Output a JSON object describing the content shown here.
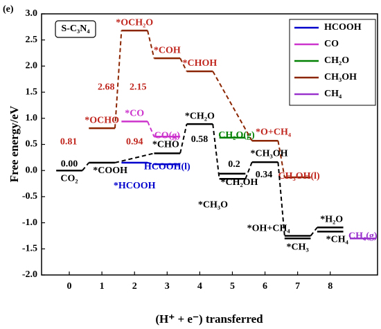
{
  "chart_data": {
    "type": "energy-diagram",
    "panel_label": "(e)",
    "title": "S-C₃N₄",
    "x_label": "(H⁺ + e⁻) transferred",
    "y_label": "Free energy/eV",
    "xlim": [
      -0.85,
      9.45
    ],
    "ylim": [
      -2.0,
      3.0
    ],
    "xticks": [
      0,
      1,
      2,
      3,
      4,
      5,
      6,
      7,
      8
    ],
    "yticks": [
      {
        "value": -2,
        "label": "-2.0"
      },
      -1.5,
      {
        "value": -1,
        "label": "-1.0"
      },
      -0.5,
      {
        "value": 0,
        "label": "0.0"
      },
      0.5,
      {
        "value": 1,
        "label": "1.0"
      },
      1.5,
      {
        "value": 2,
        "label": "2.0"
      },
      2.5,
      {
        "value": 3,
        "label": "3.0"
      }
    ],
    "main_path": {
      "color": "#000000",
      "x": [
        0,
        1,
        3,
        4,
        5,
        6,
        7,
        8
      ],
      "values": [
        0.0,
        0.15,
        0.33,
        0.89,
        -0.16,
        0.16,
        -1.25,
        -1.09
      ],
      "labels": [
        "CO₂",
        "*COOH",
        "*CHO",
        "*CH₂O",
        "*CH₃O",
        "*CH₃OH",
        "*OH+CH₄",
        "*H₂O"
      ],
      "value_labels": [
        "0.00",
        null,
        null,
        null,
        null,
        null,
        null,
        null
      ]
    },
    "side_levels": {
      "color": "#000000",
      "x": [
        5,
        7,
        8
      ],
      "values": [
        -0.06,
        -1.3,
        -1.17
      ],
      "labels": [
        "*CH₂OH",
        "*CH₃",
        "*CH₄"
      ]
    },
    "barriers": [
      0.58,
      0.2,
      0.34
    ],
    "series": [
      {
        "name": "HCOOH",
        "color": "#0000cd",
        "x": [
          2,
          3
        ],
        "values": [
          0.15,
          0.12
        ],
        "labels": [
          "*HCOOH",
          "HCOOH(l)"
        ],
        "value_labels": [
          null,
          null
        ]
      },
      {
        "name": "CO",
        "color": "#cc33cc",
        "x": [
          2,
          3
        ],
        "values": [
          0.94,
          0.65
        ],
        "labels": [
          "*CO",
          "CO(g)"
        ],
        "value_labels": [
          "0.94",
          null
        ]
      },
      {
        "name": "CH₂O",
        "color": "#008000",
        "x": [
          5
        ],
        "values": [
          0.63
        ],
        "labels": [
          "CH₂O(g)"
        ],
        "value_labels": [
          null
        ]
      },
      {
        "name": "CH₃OH",
        "color": "#8b2500",
        "x": [
          1,
          2,
          3,
          4,
          6,
          7
        ],
        "values": [
          0.81,
          2.68,
          2.15,
          1.9,
          0.57,
          -0.13
        ],
        "labels": [
          "*OCHO",
          "*OCH₂O",
          "*COH",
          "*CHOH",
          "*O+CH₄",
          "CH₃OH(l)"
        ],
        "value_labels": [
          "0.81",
          "2.68",
          "2.15",
          null,
          null,
          null
        ]
      },
      {
        "name": "CH₄",
        "color": "#9932cc",
        "x": [
          9
        ],
        "values": [
          -1.3
        ],
        "labels": [
          "CH₄(g)"
        ],
        "value_labels": [
          null
        ]
      }
    ]
  }
}
